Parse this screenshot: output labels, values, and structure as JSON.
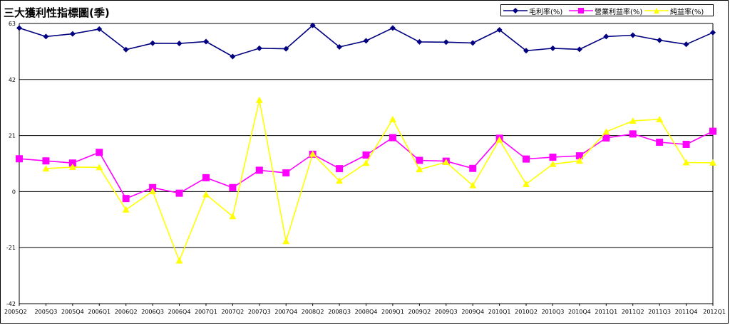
{
  "title": "三大獲利性指標圖(季)",
  "chart_data": {
    "type": "line",
    "title": "三大獲利性指標圖(季)",
    "categories": [
      "2005Q2",
      "2005Q3",
      "2005Q4",
      "2006Q1",
      "2006Q2",
      "2006Q3",
      "2006Q4",
      "2007Q1",
      "2007Q2",
      "2007Q3",
      "2007Q4",
      "2008Q2",
      "2008Q3",
      "2008Q4",
      "2009Q1",
      "2009Q2",
      "2009Q3",
      "2009Q4",
      "2010Q1",
      "2010Q2",
      "2010Q3",
      "2010Q4",
      "2011Q1",
      "2011Q2",
      "2011Q3",
      "2011Q4",
      "2012Q1"
    ],
    "ylim": [
      -42,
      63
    ],
    "yticks": [
      -42,
      -21,
      0,
      21,
      42,
      63
    ],
    "grid": true,
    "legend_position": "top-right",
    "series": [
      {
        "name": "毛利率(%)",
        "color": "#000080",
        "marker": "diamond",
        "values": [
          61.3,
          58.1,
          59.1,
          60.9,
          53.2,
          55.6,
          55.5,
          56.2,
          50.6,
          53.7,
          53.5,
          62.3,
          54.2,
          56.5,
          61.3,
          56.1,
          56.0,
          55.7,
          60.6,
          52.8,
          53.7,
          53.3,
          58.1,
          58.6,
          56.7,
          55.2,
          59.6
        ]
      },
      {
        "name": "營業利益率(%)",
        "color": "#FF00FF",
        "marker": "square",
        "values": [
          12.3,
          11.5,
          10.7,
          14.7,
          -2.6,
          1.5,
          -0.6,
          5.2,
          1.5,
          8.0,
          7.0,
          14.0,
          8.6,
          13.7,
          20.2,
          11.7,
          11.4,
          8.7,
          20.0,
          12.2,
          12.9,
          13.4,
          20.1,
          21.6,
          18.5,
          17.7,
          22.6
        ]
      },
      {
        "name": "純益率(%)",
        "color": "#FFFF00",
        "marker": "triangle",
        "values": [
          null,
          8.6,
          9.2,
          9.1,
          -6.8,
          0.1,
          -25.9,
          -1.1,
          -9.3,
          34.3,
          -18.6,
          14.1,
          4.0,
          10.7,
          27.1,
          8.3,
          11.0,
          2.3,
          19.4,
          2.8,
          10.3,
          11.5,
          22.4,
          26.5,
          27.1,
          10.9,
          10.8
        ]
      }
    ]
  }
}
